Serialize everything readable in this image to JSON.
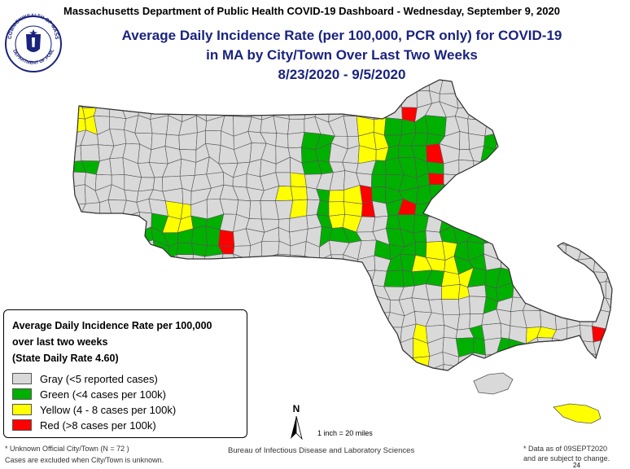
{
  "header": {
    "dashboard_line": "Massachusetts Department of Public Health COVID-19 Dashboard - Wednesday, September 9, 2020",
    "title_line_1": "Average Daily Incidence Rate (per 100,000, PCR only) for COVID-19",
    "title_line_2": "in MA by City/Town Over Last Two Weeks",
    "title_line_3": "8/23/2020 - 9/5/2020"
  },
  "seal": {
    "icon": "commonwealth-seal-icon",
    "text_top": "COMMONWEALTH OF MASSACHUSETTS",
    "text_bottom": "DEPARTMENT OF PUBLIC HEALTH"
  },
  "legend": {
    "heading_1": "Average Daily Incidence Rate per 100,000",
    "heading_2": "over last two weeks",
    "heading_3": "(State Daily Rate 4.60)",
    "items": [
      {
        "label": "Gray (<5 reported cases)",
        "color": "#d9d9d9"
      },
      {
        "label": "Green (<4 cases per 100k)",
        "color": "#00b000"
      },
      {
        "label": "Yellow (4 - 8 cases per 100k)",
        "color": "#ffff00"
      },
      {
        "label": "Red (>8 cases per 100k)",
        "color": "#ff0000"
      }
    ]
  },
  "map": {
    "north_label": "N",
    "scale_note": "1 inch = 20 miles",
    "colors": {
      "gray": "#d9d9d9",
      "green": "#00b000",
      "yellow": "#ffff00",
      "red": "#ff0000",
      "border": "#555555"
    }
  },
  "footer": {
    "unknown_note": "* Unknown Official City/Town (N = 72 )",
    "excluded_note": "Cases are excluded when City/Town is unknown.",
    "source": "Bureau of Infectious Disease and Laboratory Sciences",
    "data_as_of": "* Data as of 09SEPT2020",
    "subject_to_change": "and are subject to change.",
    "page_number": "24"
  }
}
